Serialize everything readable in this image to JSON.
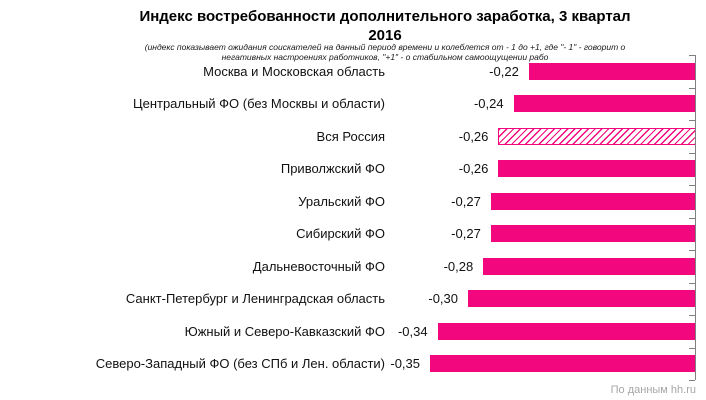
{
  "display": {
    "title_line1": "Индекс востребованности дополнительного заработка, 3 квартал",
    "title_line2": "2016",
    "subtitle_line1": "(индекс показывает ожидания соискателей на данный период времени и колеблется от - 1 до +1, где \"- 1\" - говорит о",
    "subtitle_line2": "негативных настроениях работников, \"+1\" - о стабильном самоощущении рабо"
  },
  "footer": {
    "source": "По данным hh.ru"
  },
  "chart_data": {
    "type": "bar",
    "orientation": "horizontal",
    "title": "Индекс востребованности дополнительного заработка, 3 квартал 2016",
    "subtitle": "(индекс показывает ожидания соискателей на данный период времени и колеблется от - 1 до +1, где \"- 1\" - говорит о негативных настроениях работников, \"+1\" - о стабильном самоощущении рабо",
    "categories": [
      "Москва и Московская область",
      "Центральный ФО (без Москвы и области)",
      "Вся Россия",
      "Приволжский ФО",
      "Уральский ФО",
      "Сибирский ФО",
      "Дальневосточный ФО",
      "Санкт-Петербург и Ленинградская область",
      "Южный и Северо-Кавказский ФО",
      "Северо-Западный ФО (без СПб и Лен. области)"
    ],
    "values": [
      -0.22,
      -0.24,
      -0.26,
      -0.26,
      -0.27,
      -0.27,
      -0.28,
      -0.3,
      -0.34,
      -0.35
    ],
    "value_labels": [
      "-0,22",
      "-0,24",
      "-0,26",
      "-0,26",
      "-0,27",
      "-0,27",
      "-0,28",
      "-0,30",
      "-0,34",
      "-0,35"
    ],
    "hatched_category_index": 2,
    "xlim": [
      -0.4,
      0
    ],
    "value_axis_side": "right",
    "grid": false,
    "legend": false,
    "colors": {
      "bar": "#F2077E",
      "hatch_line": "#F2077E",
      "axis": "#808080",
      "text": "#111111",
      "source_note": "#a6a6a6"
    }
  }
}
